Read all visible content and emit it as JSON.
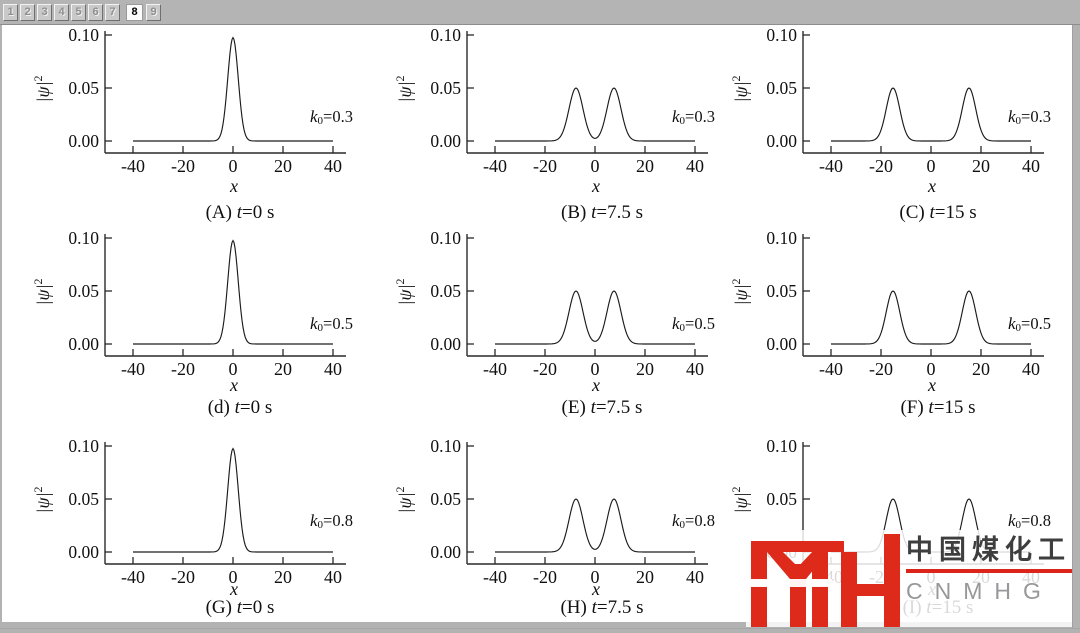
{
  "pagination": {
    "pages": [
      "1",
      "2",
      "3",
      "4",
      "5",
      "6",
      "7",
      "8",
      "9"
    ],
    "active": "8"
  },
  "watermark": {
    "cn": "中国煤化工",
    "en": "CNMHG",
    "logo_red": "#dd2a1b",
    "underline_red": "#dd241a"
  },
  "chart_data": {
    "type": "line",
    "title": "",
    "xlabel": "x",
    "ylabel": {
      "pre": "|ψ|",
      "sup": "2"
    },
    "xticks": [
      "-40",
      "-20",
      "0",
      "20",
      "40"
    ],
    "xtick_values": [
      -40,
      -20,
      0,
      20,
      40
    ],
    "yticks": [
      {
        "label": "0.00",
        "v": 0
      },
      {
        "label": "0.05",
        "v": 0.05
      },
      {
        "label": "0.10",
        "v": 0.1
      }
    ],
    "xlim": [
      -50,
      53
    ],
    "ylim": [
      0,
      0.108
    ],
    "grid": false,
    "legend": "none",
    "curve_color": "#1c1c1c",
    "plots": [
      {
        "id": "A",
        "row": 0,
        "col": 0,
        "caption": {
          "pre": "(A) ",
          "var": "t",
          "rest": "=0 s"
        },
        "annotation": {
          "var": "k",
          "sub": "0",
          "rest": "=0.3"
        },
        "peaks": [
          {
            "center": 0,
            "amp": 0.0975,
            "sigma": 2.1
          }
        ]
      },
      {
        "id": "B",
        "row": 0,
        "col": 1,
        "caption": {
          "pre": "(B) ",
          "var": "t",
          "rest": "=7.5 s"
        },
        "annotation": {
          "var": "k",
          "sub": "0",
          "rest": "=0.3"
        },
        "peaks": [
          {
            "center": -7.6,
            "amp": 0.05,
            "sigma": 2.8
          },
          {
            "center": 7.6,
            "amp": 0.05,
            "sigma": 2.8
          }
        ]
      },
      {
        "id": "C",
        "row": 0,
        "col": 2,
        "caption": {
          "pre": "(C) ",
          "var": "t",
          "rest": "=15 s"
        },
        "annotation": {
          "var": "k",
          "sub": "0",
          "rest": "=0.3"
        },
        "peaks": [
          {
            "center": -15.2,
            "amp": 0.05,
            "sigma": 2.7
          },
          {
            "center": 15.2,
            "amp": 0.05,
            "sigma": 2.7
          }
        ]
      },
      {
        "id": "d",
        "row": 1,
        "col": 0,
        "caption": {
          "pre": "(d) ",
          "var": "t",
          "rest": "=0 s"
        },
        "annotation": {
          "var": "k",
          "sub": "0",
          "rest": "=0.5"
        },
        "peaks": [
          {
            "center": 0,
            "amp": 0.0975,
            "sigma": 2.1
          }
        ]
      },
      {
        "id": "E",
        "row": 1,
        "col": 1,
        "caption": {
          "pre": "(E) ",
          "var": "t",
          "rest": "=7.5 s"
        },
        "annotation": {
          "var": "k",
          "sub": "0",
          "rest": "=0.5"
        },
        "peaks": [
          {
            "center": -7.6,
            "amp": 0.05,
            "sigma": 2.8
          },
          {
            "center": 7.6,
            "amp": 0.05,
            "sigma": 2.8
          }
        ]
      },
      {
        "id": "F",
        "row": 1,
        "col": 2,
        "caption": {
          "pre": "(F) ",
          "var": "t",
          "rest": "=15 s"
        },
        "annotation": {
          "var": "k",
          "sub": "0",
          "rest": "=0.5"
        },
        "peaks": [
          {
            "center": -15.2,
            "amp": 0.05,
            "sigma": 2.7
          },
          {
            "center": 15.2,
            "amp": 0.05,
            "sigma": 2.7
          }
        ]
      },
      {
        "id": "G",
        "row": 2,
        "col": 0,
        "caption": {
          "pre": "(G) ",
          "var": "t",
          "rest": "=0 s"
        },
        "annotation": {
          "var": "k",
          "sub": "0",
          "rest": "=0.8"
        },
        "peaks": [
          {
            "center": 0,
            "amp": 0.0975,
            "sigma": 2.1
          }
        ]
      },
      {
        "id": "H",
        "row": 2,
        "col": 1,
        "caption": {
          "pre": "(H) ",
          "var": "t",
          "rest": "=7.5 s"
        },
        "annotation": {
          "var": "k",
          "sub": "0",
          "rest": "=0.8"
        },
        "peaks": [
          {
            "center": -7.6,
            "amp": 0.05,
            "sigma": 2.8
          },
          {
            "center": 7.6,
            "amp": 0.05,
            "sigma": 2.8
          }
        ]
      },
      {
        "id": "I",
        "row": 2,
        "col": 2,
        "caption": {
          "pre": "(I) ",
          "var": "t",
          "rest": "=15 s"
        },
        "annotation": {
          "var": "k",
          "sub": "0",
          "rest": "=0.8"
        },
        "peaks": [
          {
            "center": -15.2,
            "amp": 0.05,
            "sigma": 2.7
          },
          {
            "center": 15.2,
            "amp": 0.05,
            "sigma": 2.7
          }
        ]
      }
    ]
  }
}
